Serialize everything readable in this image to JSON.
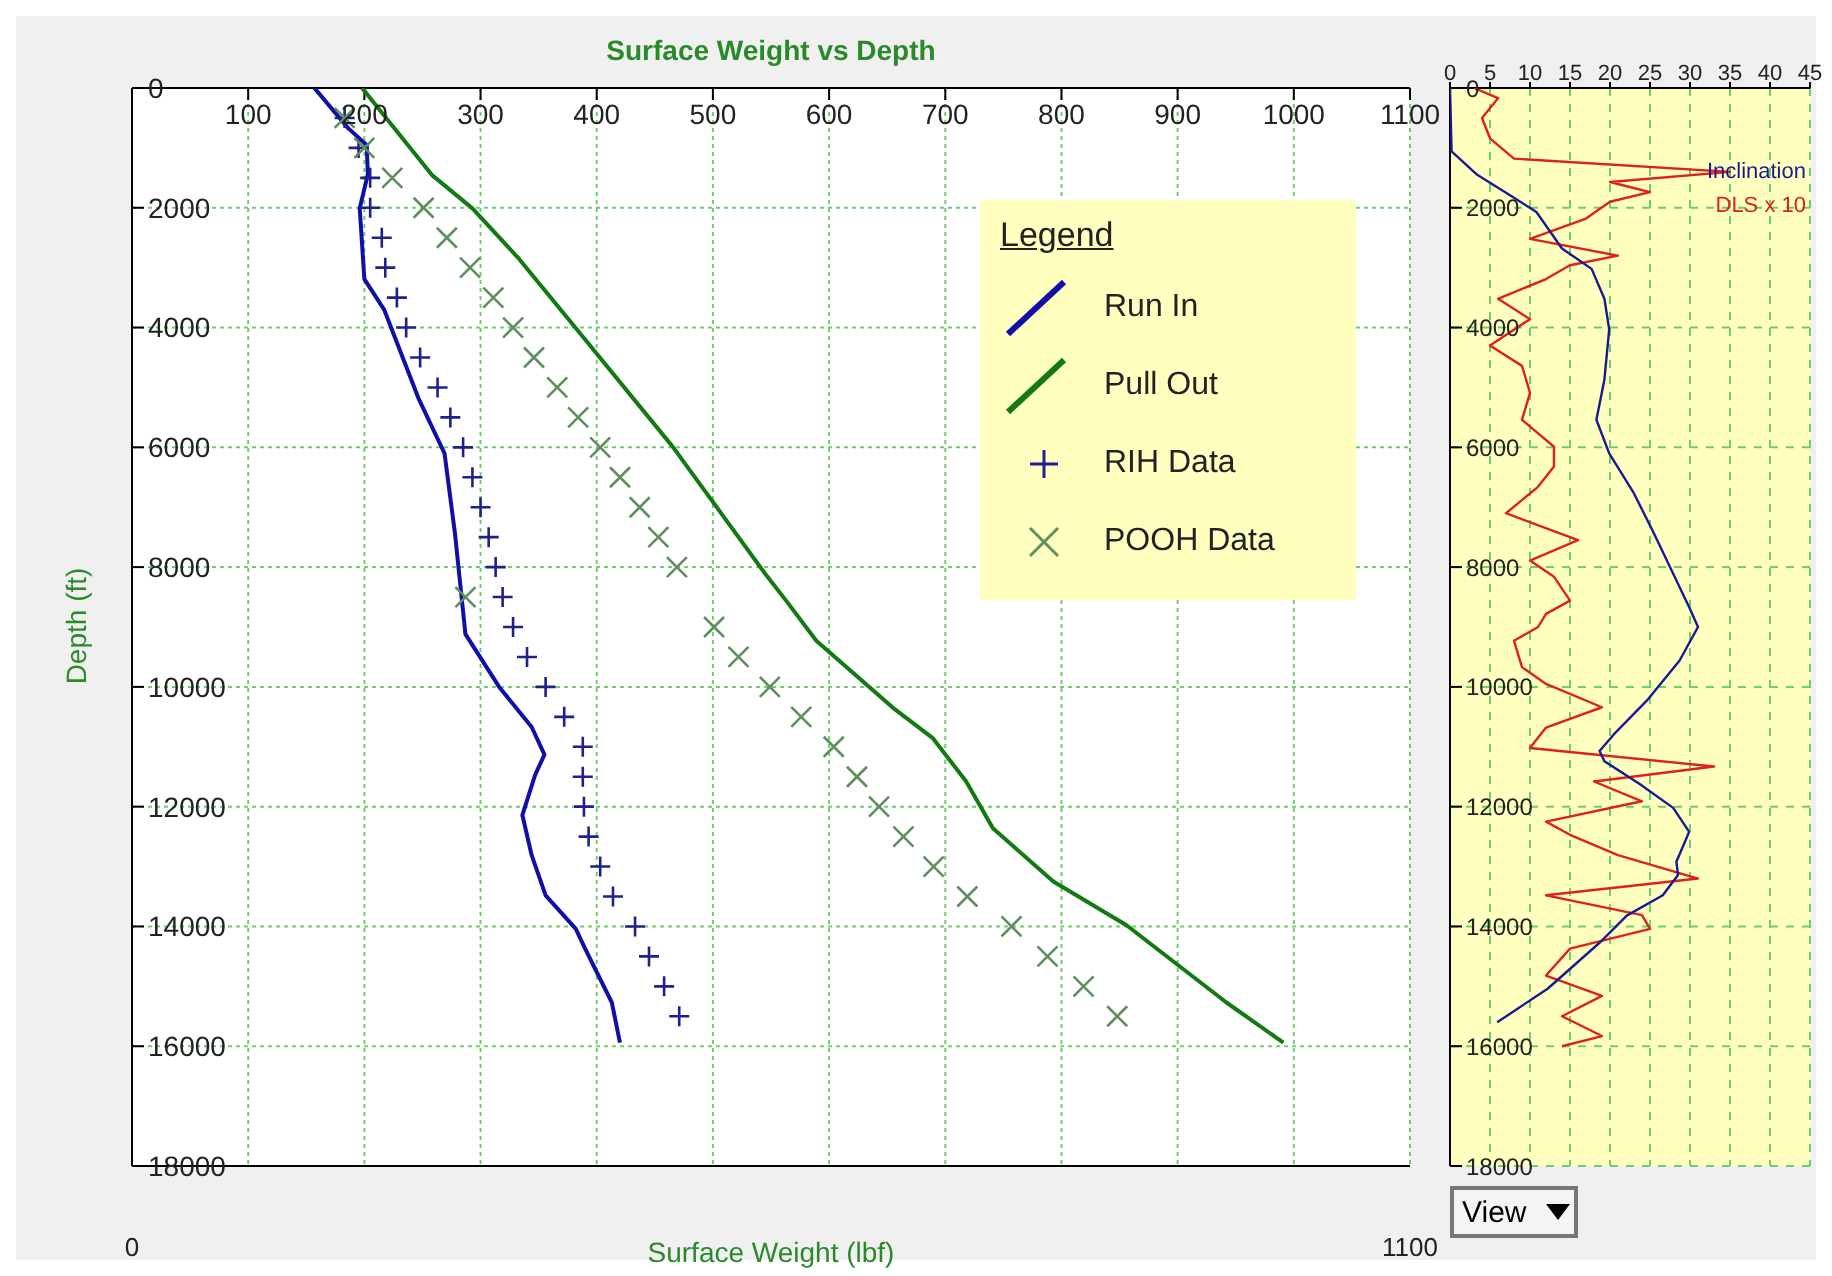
{
  "chart_data": [
    {
      "type": "line",
      "title": "Surface Weight vs Depth",
      "xlabel": "Surface Weight (lbf)",
      "ylabel": "Depth (ft)",
      "legend_title": "Legend",
      "legend": "top right",
      "grid": true,
      "xlim": [
        0,
        1100
      ],
      "xticks": [
        0,
        1100
      ],
      "x2lim": [
        0,
        1100
      ],
      "x2ticks": [
        100,
        200,
        300,
        400,
        500,
        600,
        700,
        800,
        900,
        1000,
        1100
      ],
      "ylim": [
        18000,
        0
      ],
      "yticks": [
        0,
        2000,
        4000,
        6000,
        8000,
        10000,
        12000,
        14000,
        16000,
        18000
      ],
      "series": [
        {
          "name": "Run In",
          "type": "line",
          "color": "#1010a8",
          "marker": "none",
          "line_style": "solid",
          "x": [
            157,
            186,
            202,
            203,
            196,
            200,
            217,
            247,
            269,
            278,
            284,
            287,
            316,
            344,
            355,
            347,
            336,
            344,
            356,
            382,
            390,
            413,
            420
          ],
          "values": [
            0,
            670,
            950,
            1440,
            2010,
            3190,
            3700,
            5200,
            6100,
            7440,
            8560,
            9120,
            10000,
            10670,
            11130,
            11470,
            12140,
            12810,
            13480,
            14040,
            14370,
            15270,
            15940
          ]
        },
        {
          "name": "Pull Out",
          "type": "line",
          "color": "#137a13",
          "marker": "none",
          "line_style": "solid",
          "x": [
            198,
            258,
            293,
            333,
            390,
            465,
            545,
            563,
            589,
            655,
            689,
            718,
            741,
            793,
            856,
            942,
            991
          ],
          "values": [
            0,
            1450,
            2010,
            2850,
            4200,
            5980,
            8110,
            8560,
            9230,
            10350,
            10850,
            11580,
            12360,
            13250,
            13980,
            15270,
            15940
          ]
        },
        {
          "name": "RIH Data",
          "type": "scatter",
          "color": "#20208c",
          "marker": "plus",
          "x": [
            183,
            195,
            205,
            205,
            215,
            218,
            228,
            236,
            248,
            263,
            274,
            285,
            293,
            300,
            307,
            313,
            319,
            328,
            340,
            356,
            372,
            388,
            388,
            389,
            393,
            403,
            414,
            433,
            445,
            458,
            471
          ],
          "values": [
            500,
            1000,
            1500,
            2000,
            2500,
            3000,
            3500,
            4000,
            4500,
            5000,
            5500,
            6000,
            6500,
            7000,
            7500,
            8000,
            8500,
            9000,
            9500,
            10000,
            10500,
            11000,
            11500,
            12000,
            12500,
            13000,
            13500,
            14000,
            14500,
            15000,
            15500
          ]
        },
        {
          "name": "POOH Data",
          "type": "scatter",
          "color": "#5f8f5f",
          "marker": "cross",
          "x": [
            183,
            200,
            224,
            251,
            271,
            291,
            311,
            328,
            346,
            366,
            384,
            403,
            420,
            437,
            453,
            469,
            287,
            501,
            522,
            549,
            576,
            604,
            624,
            643,
            664,
            690,
            719,
            757,
            788,
            819,
            848
          ],
          "values": [
            500,
            1000,
            1500,
            2000,
            2500,
            3000,
            3500,
            4000,
            4500,
            5000,
            5500,
            6000,
            6500,
            7000,
            7500,
            8000,
            8500,
            9000,
            9500,
            10000,
            10500,
            11000,
            11500,
            12000,
            12500,
            13000,
            13500,
            14000,
            14500,
            15000,
            15500
          ]
        }
      ]
    },
    {
      "type": "line",
      "grid": true,
      "annotations": [
        "View"
      ],
      "xlim": [
        0,
        45
      ],
      "xticks": [
        0,
        5,
        10,
        15,
        20,
        25,
        30,
        35,
        40,
        45
      ],
      "ylim": [
        18000,
        0
      ],
      "yticks": [
        0,
        2000,
        4000,
        6000,
        8000,
        10000,
        12000,
        14000,
        16000,
        18000
      ],
      "series": [
        {
          "name": "DLS x 10",
          "type": "line",
          "color": "#e02020",
          "marker": "none",
          "line_style": "solid",
          "x": [
            3,
            6,
            4,
            5,
            8,
            35,
            20,
            25,
            20,
            17,
            10,
            21,
            15,
            12,
            6,
            10,
            5,
            9,
            10,
            9,
            13,
            13,
            11,
            7,
            16,
            10,
            13,
            15,
            12,
            11,
            8,
            9,
            12,
            19,
            12,
            10,
            33,
            18,
            24,
            12,
            15,
            21,
            31,
            12,
            24,
            25,
            15,
            12,
            19,
            14,
            19,
            14
          ],
          "values": [
            0,
            170,
            500,
            840,
            1180,
            1400,
            1570,
            1740,
            1900,
            2180,
            2520,
            2800,
            2960,
            3190,
            3520,
            3860,
            4300,
            4640,
            5090,
            5540,
            5990,
            6320,
            6660,
            7100,
            7550,
            7890,
            8160,
            8560,
            8780,
            9000,
            9230,
            9670,
            9950,
            10340,
            10680,
            11020,
            11330,
            11580,
            11910,
            12250,
            12470,
            12810,
            13200,
            13480,
            13810,
            14040,
            14370,
            14820,
            15160,
            15500,
            15830,
            16000
          ]
        },
        {
          "name": "Inclination",
          "type": "line",
          "color": "#1a1a90",
          "marker": "none",
          "line_style": "solid",
          "x": [
            0,
            0.2,
            3.4,
            7.5,
            10.8,
            14,
            17.7,
            19.3,
            19.9,
            19.3,
            18.3,
            19.9,
            23,
            25.5,
            27.9,
            29.9,
            31,
            28.7,
            24.6,
            20.5,
            18.7,
            19.3,
            23.8,
            27.9,
            29.9,
            28.3,
            28.5,
            26.6,
            22.1,
            18.8,
            12.2,
            5.9
          ],
          "values": [
            0,
            1060,
            1450,
            1790,
            2070,
            2680,
            3020,
            3520,
            4030,
            4870,
            5540,
            6100,
            6770,
            7440,
            8110,
            8670,
            9000,
            9560,
            10230,
            10790,
            11070,
            11240,
            11630,
            12020,
            12420,
            12920,
            13140,
            13480,
            13820,
            14260,
            15040,
            15600
          ]
        }
      ]
    }
  ]
}
